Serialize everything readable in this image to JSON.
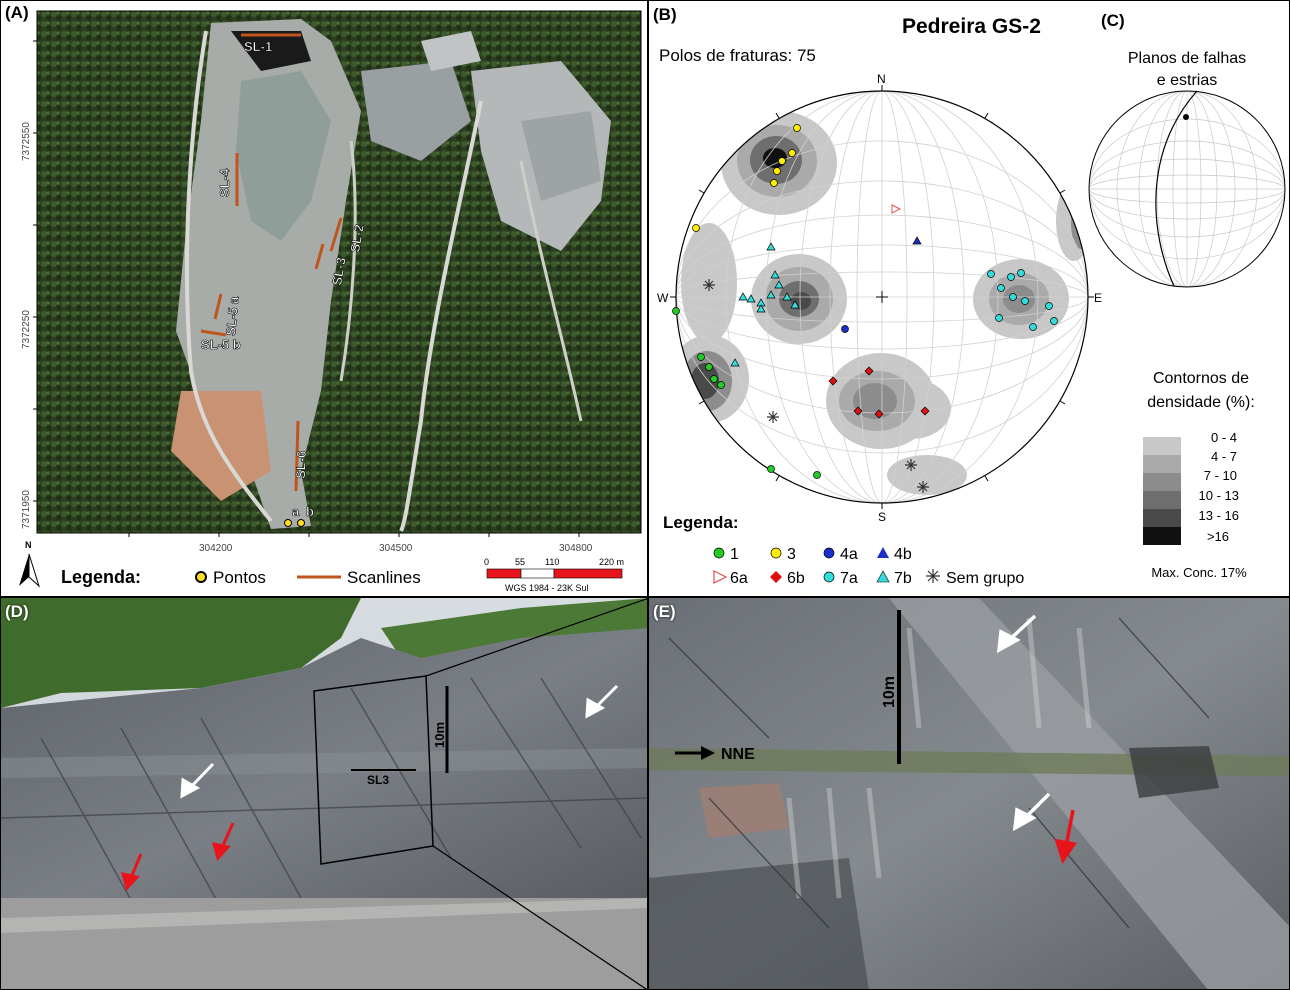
{
  "panels": {
    "a": {
      "label": "(A)",
      "scanlines": [
        "SL-1",
        "SL-2",
        "SL-3",
        "SL-4",
        "SL-5 a",
        "SL-5 b",
        "SL-6"
      ],
      "points": [
        "a",
        "b"
      ],
      "y_ticks": [
        "7372550",
        "7372250",
        "7371950"
      ],
      "x_ticks": [
        "304200",
        "304500",
        "304800"
      ],
      "north": "N",
      "legend": {
        "title": "Legenda:",
        "points": "Pontos",
        "scanlines": "Scanlines"
      },
      "scalebar": {
        "ticks": [
          "0",
          "55",
          "110",
          "220 m"
        ],
        "crs": "WGS 1984 - 23K Sul"
      }
    },
    "b": {
      "label": "(B)",
      "title": "Pedreira GS-2",
      "subtitle": "Polos de fraturas: 75",
      "dirs": {
        "n": "N",
        "s": "S",
        "e": "E",
        "w": "W"
      },
      "legend_title": "Legenda:",
      "legend": [
        {
          "label": "1",
          "shape": "circle",
          "color": "#22cc22"
        },
        {
          "label": "3",
          "shape": "circle",
          "color": "#ffee00"
        },
        {
          "label": "4a",
          "shape": "circle",
          "color": "#1a2ecc"
        },
        {
          "label": "4b",
          "shape": "triangle",
          "color": "#1a2ecc"
        },
        {
          "label": "6a",
          "shape": "triangle-right-open",
          "color": "#e05050"
        },
        {
          "label": "6b",
          "shape": "diamond",
          "color": "#dd1111"
        },
        {
          "label": "7a",
          "shape": "circle",
          "color": "#33dddd"
        },
        {
          "label": "7b",
          "shape": "triangle",
          "color": "#33dddd"
        },
        {
          "label": "Sem grupo",
          "shape": "asterisk",
          "color": "#333333"
        }
      ]
    },
    "c": {
      "label": "(C)",
      "title_lines": [
        "Planos de falhas",
        "e estrias"
      ],
      "density_title_lines": [
        "Contornos de",
        "densidade (%):"
      ],
      "density_bins": [
        "0 -  4",
        "4 -  7",
        "7 - 10",
        "10 - 13",
        "13 - 16",
        ">16"
      ],
      "density_colors": [
        "#c8c8c8",
        "#aaaaaa",
        "#8c8c8c",
        "#6e6e6e",
        "#4a4a4a",
        "#111111"
      ],
      "max_conc": "Max. Conc. 17%"
    },
    "d": {
      "label": "(D)",
      "scale": "10m",
      "scanline": "SL3"
    },
    "e": {
      "label": "(E)",
      "scale": "10m",
      "direction": "NNE"
    }
  }
}
